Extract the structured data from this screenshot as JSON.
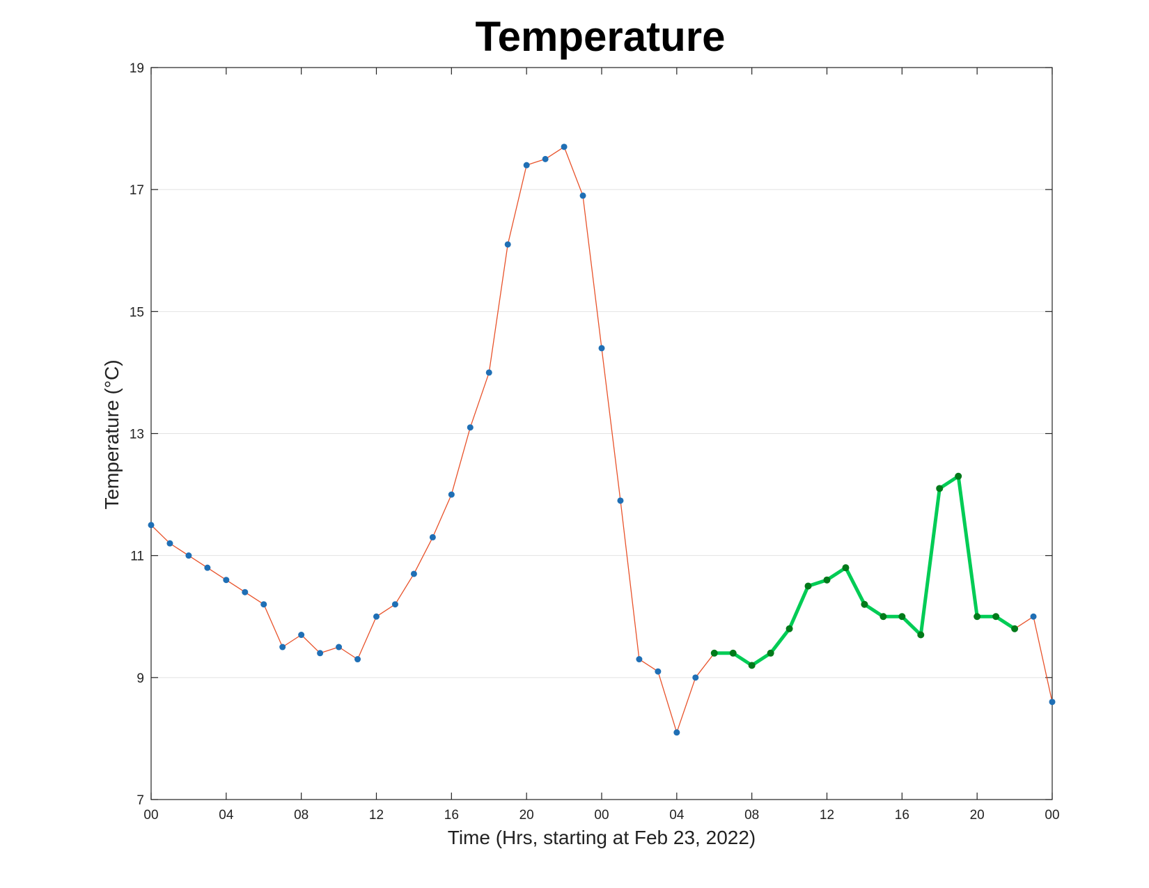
{
  "chart_data": {
    "type": "line",
    "title": "Temperature",
    "xlabel": "Time (Hrs, starting at Feb 23, 2022)",
    "ylabel": "Temperature (°C)",
    "xlim": [
      0,
      48
    ],
    "ylim": [
      7,
      19
    ],
    "grid": "horizontal",
    "x_ticks": [
      {
        "x": 0,
        "label": "00"
      },
      {
        "x": 4,
        "label": "04"
      },
      {
        "x": 8,
        "label": "08"
      },
      {
        "x": 12,
        "label": "12"
      },
      {
        "x": 16,
        "label": "16"
      },
      {
        "x": 20,
        "label": "20"
      },
      {
        "x": 24,
        "label": "00"
      },
      {
        "x": 28,
        "label": "04"
      },
      {
        "x": 32,
        "label": "08"
      },
      {
        "x": 36,
        "label": "12"
      },
      {
        "x": 40,
        "label": "16"
      },
      {
        "x": 44,
        "label": "20"
      },
      {
        "x": 48,
        "label": "00"
      }
    ],
    "y_ticks": [
      {
        "y": 7,
        "label": "7"
      },
      {
        "y": 9,
        "label": "9"
      },
      {
        "y": 11,
        "label": "11"
      },
      {
        "y": 13,
        "label": "13"
      },
      {
        "y": 15,
        "label": "15"
      },
      {
        "y": 17,
        "label": "17"
      },
      {
        "y": 19,
        "label": "19"
      }
    ],
    "series": [
      {
        "color": "#e8522a",
        "marker_color": "#1f6fb5",
        "x": [
          0,
          1,
          2,
          3,
          4,
          5,
          6,
          7,
          8,
          9,
          10,
          11,
          12,
          13,
          14,
          15,
          16,
          17,
          18,
          19,
          20,
          21,
          22,
          23,
          24,
          25,
          26,
          27,
          28,
          29,
          30,
          31,
          32,
          33,
          34,
          35,
          36,
          37,
          38,
          39,
          40,
          41,
          42,
          43,
          44,
          45,
          46,
          47,
          48
        ],
        "y": [
          11.5,
          11.2,
          11.0,
          10.8,
          10.6,
          10.4,
          10.2,
          9.5,
          9.7,
          9.4,
          9.5,
          9.3,
          10.0,
          10.2,
          10.7,
          11.3,
          12.0,
          13.1,
          14.0,
          16.1,
          17.4,
          17.5,
          17.7,
          16.9,
          14.4,
          11.9,
          9.3,
          9.1,
          8.1,
          9.0,
          9.4,
          9.4,
          9.2,
          9.4,
          9.8,
          10.5,
          10.6,
          10.8,
          10.2,
          10.0,
          10.0,
          9.7,
          12.1,
          12.3,
          10.0,
          10.0,
          9.8,
          10.0,
          8.6
        ]
      },
      {
        "color": "#00cc55",
        "marker_color": "#007a1a",
        "x": [
          30,
          31,
          32,
          33,
          34,
          35,
          36,
          37,
          38,
          39,
          40,
          41,
          42,
          43,
          44,
          45,
          46
        ],
        "y": [
          9.4,
          9.4,
          9.2,
          9.4,
          9.8,
          10.5,
          10.6,
          10.8,
          10.2,
          10.0,
          10.0,
          9.7,
          12.1,
          12.3,
          10.0,
          10.0,
          9.8
        ]
      }
    ]
  }
}
